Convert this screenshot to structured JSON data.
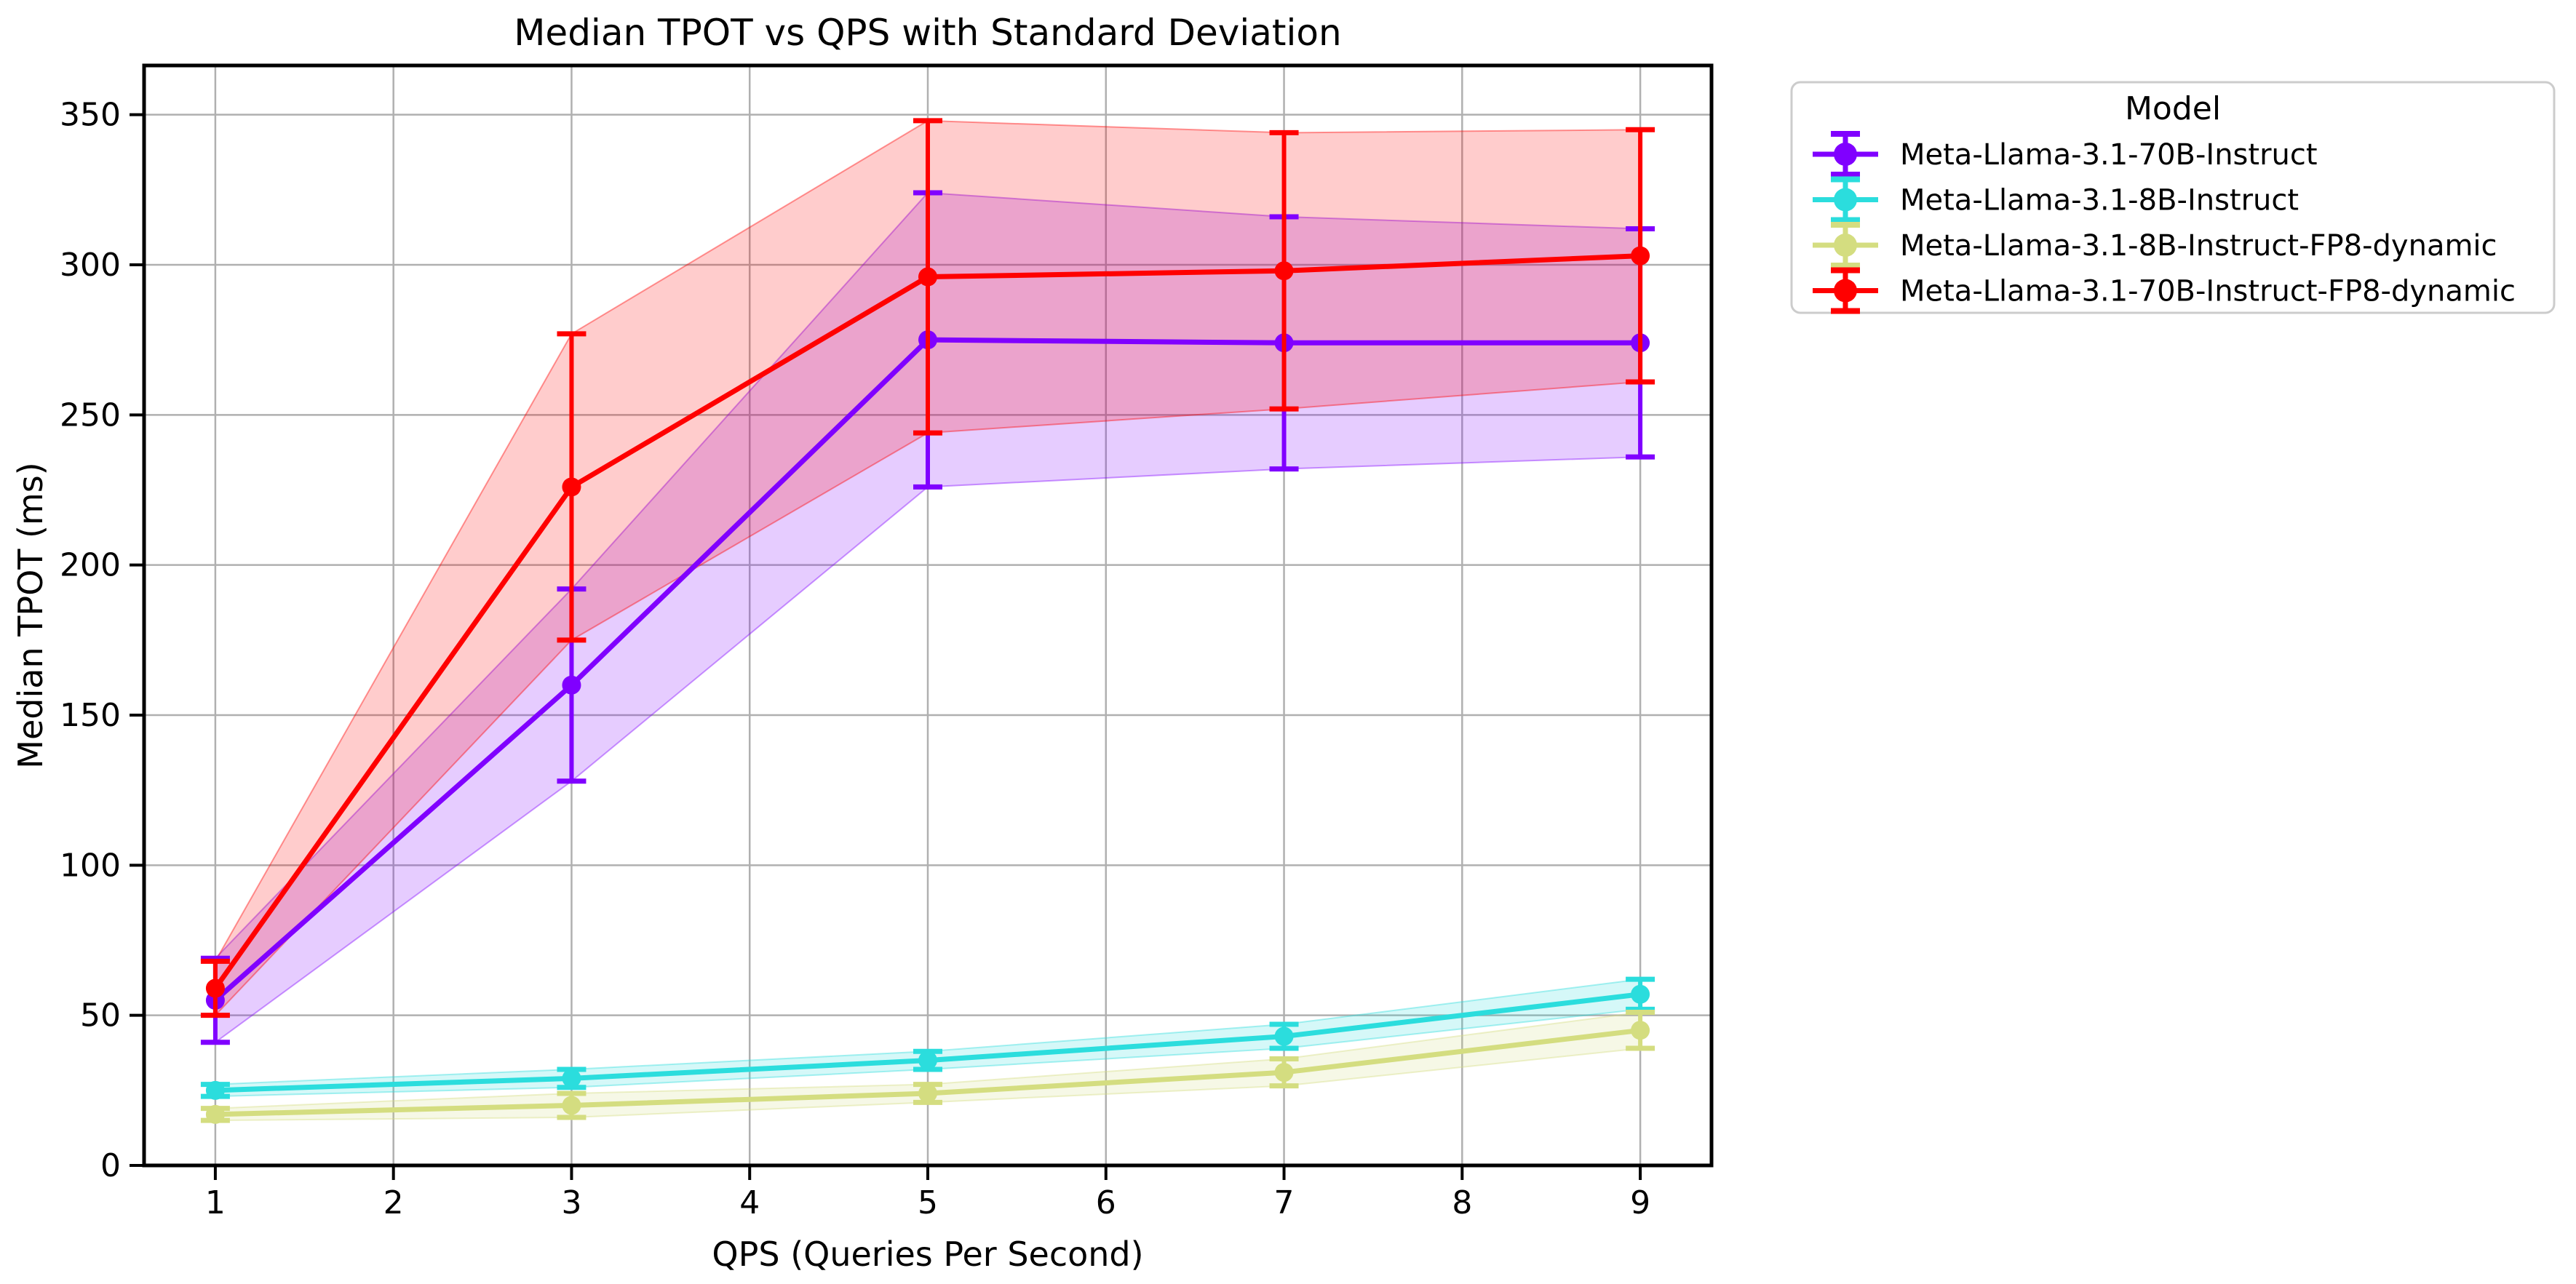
{
  "page": {
    "background": "#ffffff"
  },
  "chart_data": {
    "type": "line",
    "title": "Median TPOT vs QPS with Standard Deviation",
    "xlabel": "QPS (Queries Per Second)",
    "ylabel": "Median TPOT (ms)",
    "legend_title": "Model",
    "legend_position": "outside upper right",
    "grid": true,
    "grid_color": "#b0b0b0",
    "spine_color": "#000000",
    "legend_border_color": "#cccccc",
    "band_alpha": 0.2,
    "marker": "o",
    "x": [
      1,
      3,
      5,
      7,
      9
    ],
    "x_ticks": [
      "1",
      "2",
      "3",
      "4",
      "5",
      "6",
      "7",
      "8",
      "9"
    ],
    "y_ticks": [
      "0",
      "50",
      "100",
      "150",
      "200",
      "250",
      "300",
      "350"
    ],
    "y_tick_values": [
      0,
      50,
      100,
      150,
      200,
      250,
      300,
      350
    ],
    "x_tick_values": [
      1,
      2,
      3,
      4,
      5,
      6,
      7,
      8,
      9
    ],
    "xlim": [
      0.6,
      9.4
    ],
    "ylim": [
      0,
      366.4
    ],
    "series": [
      {
        "name": "Meta-Llama-3.1-70B-Instruct",
        "color": "#8000FF",
        "values": [
          55,
          160,
          275,
          274,
          274
        ],
        "std": [
          14,
          32,
          49,
          42,
          38
        ]
      },
      {
        "name": "Meta-Llama-3.1-8B-Instruct",
        "color": "#2BDDDD",
        "values": [
          25,
          29,
          35,
          43,
          57
        ],
        "std": [
          2,
          3,
          3,
          4,
          5
        ]
      },
      {
        "name": "Meta-Llama-3.1-8B-Instruct-FP8-dynamic",
        "color": "#D4DD80",
        "values": [
          17,
          20,
          24,
          31,
          45
        ],
        "std": [
          2,
          4,
          3,
          4.5,
          6
        ]
      },
      {
        "name": "Meta-Llama-3.1-70B-Instruct-FP8-dynamic",
        "color": "#FF0000",
        "values": [
          59,
          226,
          296,
          298,
          303
        ],
        "std": [
          9,
          51,
          52,
          46,
          42
        ]
      }
    ]
  }
}
